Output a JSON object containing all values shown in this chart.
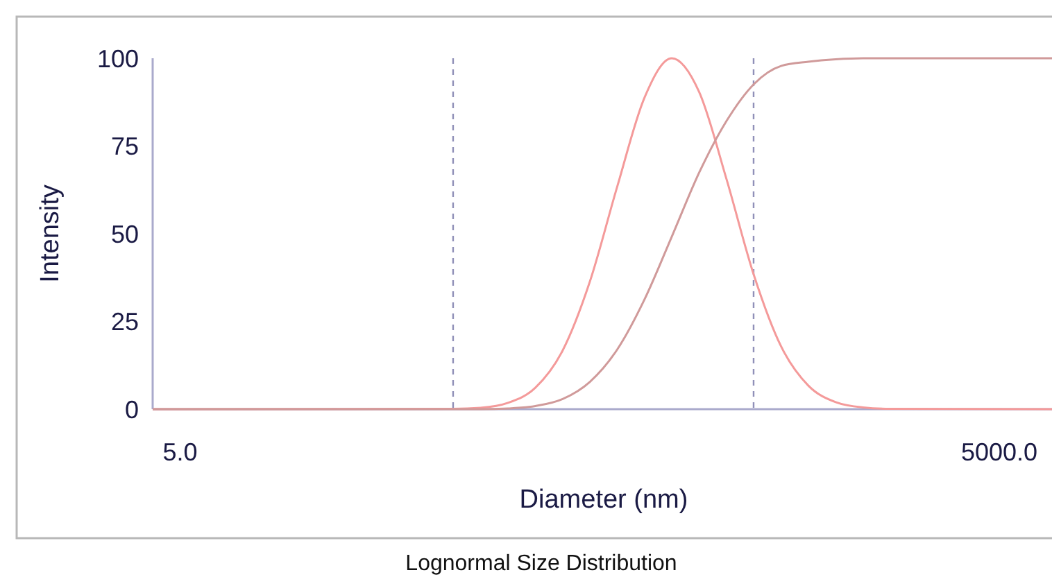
{
  "chart_data": {
    "type": "line",
    "title": "Lognormal Size Distribution",
    "xlabel": "Diameter (nm)",
    "ylabel": "Intensity",
    "log": "x",
    "xlim": [
      3.97,
      7800
    ],
    "xticks": [
      {
        "value": 5,
        "label": "5.0"
      },
      {
        "value": 5000,
        "label": "5000.0"
      }
    ],
    "ylim": [
      0,
      100
    ],
    "yticks": [
      0,
      25,
      50,
      75,
      100
    ],
    "grid": false,
    "marker": "none",
    "line_style": "solid",
    "x": [
      3.97,
      50.1,
      63.1,
      79.4,
      100,
      125.9,
      158.5,
      199.5,
      251.2,
      316.2,
      398.1,
      501.2,
      631,
      794.3,
      1000,
      1258.9,
      1584.9,
      1995.3,
      7800
    ],
    "series": [
      {
        "color": "#f49a9a",
        "values": [
          0,
          0.1,
          0.4,
          1.8,
          6.1,
          16.7,
          36.4,
          63.4,
          88.8,
          100,
          90.4,
          65.6,
          38.3,
          17.9,
          6.7,
          2,
          0.5,
          0.1,
          0
        ]
      },
      {
        "color": "#d09a9a",
        "values": [
          0,
          0,
          0,
          0.2,
          0.9,
          2.9,
          7.8,
          17,
          31.3,
          49.2,
          67.4,
          82.1,
          92.6,
          97.8,
          99,
          99.7,
          100,
          100,
          100
        ]
      }
    ],
    "ref_lines": [
      {
        "axis": "x",
        "value": 50,
        "color": "#9090b8",
        "line_style": "dashed"
      },
      {
        "axis": "x",
        "value": 630,
        "color": "#9090b8",
        "line_style": "dashed"
      }
    ]
  }
}
